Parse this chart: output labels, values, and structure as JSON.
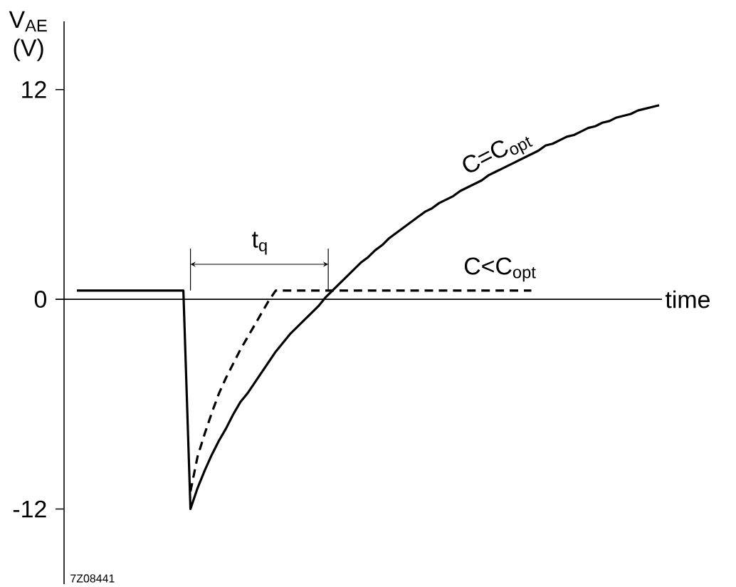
{
  "chart_data": {
    "type": "line",
    "xlabel": "time",
    "ylabel": "V$_{AE}$ (V)",
    "categories": [
      null,
      null,
      null,
      null,
      null,
      null,
      null,
      null,
      null,
      null,
      null,
      null,
      null,
      null,
      null,
      null,
      null,
      null,
      null,
      null,
      null,
      null,
      null,
      null,
      null,
      null,
      null,
      null,
      null,
      null,
      null,
      null,
      null,
      null,
      null,
      null,
      null,
      null,
      null,
      null,
      null,
      null,
      null,
      null,
      null,
      null,
      null,
      null,
      null,
      null,
      null,
      null,
      null,
      null,
      null,
      null,
      null,
      null,
      null,
      null,
      null,
      null,
      null,
      null,
      null,
      null,
      null,
      null,
      null,
      null,
      null,
      null,
      null,
      null,
      null,
      null,
      null,
      null,
      null,
      null,
      null,
      null,
      null
    ],
    "series": [
      {
        "name": "C=C$_{opt}$",
        "color": "#000000",
        "line_style": "solid",
        "values": [
          0.5,
          0.5,
          0.5,
          0.5,
          0.5,
          0.5,
          0.5,
          0.5,
          0.5,
          0.5,
          0.5,
          0.5,
          0.5,
          0.5,
          0.5,
          0.5,
          -12.0,
          -10.8,
          -9.8,
          -8.9,
          -8.1,
          -7.4,
          -6.6,
          -5.9,
          -5.4,
          -4.8,
          -4.2,
          -3.6,
          -3.0,
          -2.5,
          -2.0,
          -1.6,
          -1.2,
          -0.8,
          -0.4,
          0.1,
          0.5,
          0.9,
          1.3,
          1.7,
          2.1,
          2.4,
          2.8,
          3.1,
          3.5,
          3.8,
          4.1,
          4.4,
          4.7,
          5.0,
          5.2,
          5.5,
          5.7,
          5.9,
          6.2,
          6.4,
          6.6,
          6.8,
          7.1,
          7.3,
          7.5,
          7.7,
          7.9,
          8.1,
          8.3,
          8.5,
          8.8,
          8.9,
          9.1,
          9.3,
          9.4,
          9.6,
          9.8,
          9.9,
          10.1,
          10.2,
          10.4,
          10.5,
          10.6,
          10.8,
          10.9,
          11.0,
          11.1
        ]
      },
      {
        "name": "C<C$_{opt}$",
        "color": "#000000",
        "line_style": "dashed",
        "values": [
          null,
          null,
          null,
          null,
          null,
          null,
          null,
          null,
          null,
          null,
          null,
          null,
          null,
          null,
          null,
          null,
          -11.0,
          -9.0,
          -7.7,
          -6.5,
          -5.4,
          -4.5,
          -3.7,
          -2.9,
          -2.2,
          -1.5,
          -0.8,
          -0.1,
          0.5,
          0.5,
          0.5,
          0.5,
          0.5,
          0.5,
          0.5,
          0.5,
          0.5,
          0.5,
          0.5,
          0.5,
          0.5,
          0.5,
          0.5,
          0.5,
          0.5,
          0.5,
          0.5,
          0.5,
          0.5,
          0.5,
          0.5,
          0.5,
          0.5,
          0.5,
          0.5,
          0.5,
          0.5,
          0.5,
          0.5,
          0.5,
          0.5,
          0.5,
          0.5,
          0.5,
          0.5,
          null,
          null,
          null,
          null,
          null,
          null,
          null,
          null,
          null,
          null,
          null,
          null,
          null,
          null,
          null,
          null,
          null,
          null
        ]
      }
    ],
    "ylim": [
      -16.3,
      15.9
    ],
    "yticks": [
      -12,
      0,
      12
    ],
    "tick_labels": "y",
    "marker": "none",
    "annotations": [
      "t$_{q}$",
      "7Z08441"
    ]
  }
}
